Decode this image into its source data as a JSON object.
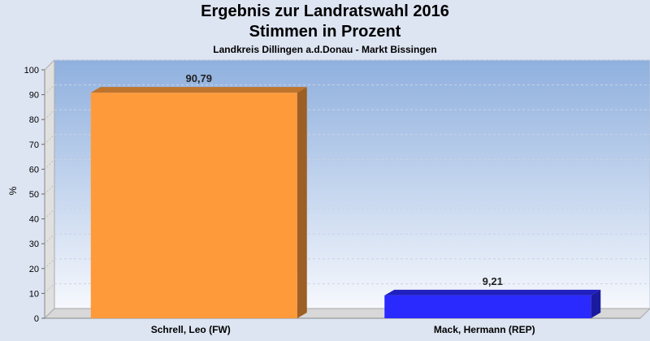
{
  "header": {
    "title": "Ergebnis zur Landratswahl 2016",
    "subtitle": "Stimmen in Prozent",
    "caption": "Landkreis Dillingen a.d.Donau - Markt Bissingen"
  },
  "chart_data": {
    "type": "bar",
    "ylabel": "%",
    "xlabel": "",
    "ylim": [
      0,
      100
    ],
    "yticks": [
      0,
      10,
      20,
      30,
      40,
      50,
      60,
      70,
      80,
      90,
      100
    ],
    "grid": true,
    "legend": "none",
    "categories": [
      "Schrell, Leo (FW)",
      "Mack, Hermann (REP)"
    ],
    "values": [
      90.79,
      9.21
    ],
    "value_labels": [
      "90,79",
      "9,21"
    ],
    "colors": [
      "#ff9a3a",
      "#2a2aff"
    ]
  }
}
